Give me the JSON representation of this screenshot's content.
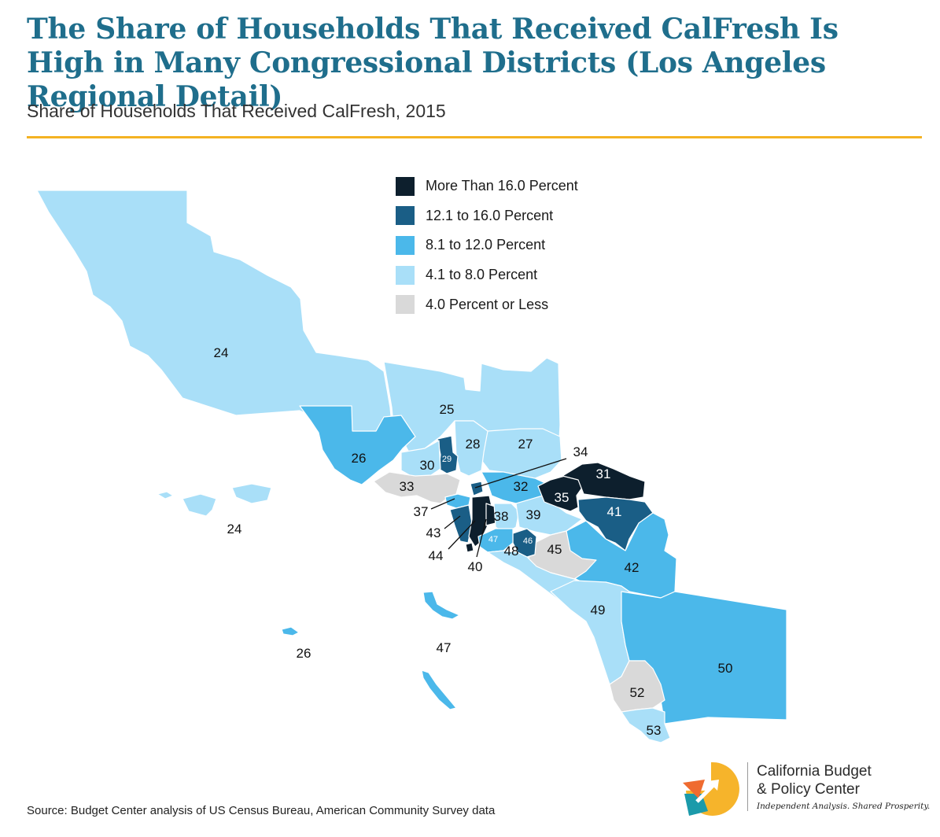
{
  "title": "The Share of Households That Received CalFresh Is High in Many Congressional Districts (Los Angeles Regional Detail)",
  "subtitle": "Share of Households That Received CalFresh, 2015",
  "legend": [
    {
      "label": "More Than 16.0 Percent",
      "color": "#0d1f2d"
    },
    {
      "label": "12.1 to 16.0 Percent",
      "color": "#1a5e86"
    },
    {
      "label": "8.1 to 12.0 Percent",
      "color": "#4bb8ea"
    },
    {
      "label": "4.1 to 8.0 Percent",
      "color": "#a9dff8"
    },
    {
      "label": "4.0 Percent or Less",
      "color": "#d9d9d9"
    }
  ],
  "districts": {
    "d24": "24",
    "d25": "25",
    "d26": "26",
    "d27": "27",
    "d28": "28",
    "d29": "29",
    "d30": "30",
    "d31": "31",
    "d32": "32",
    "d33": "33",
    "d34": "34",
    "d35": "35",
    "d37": "37",
    "d38": "38",
    "d39": "39",
    "d40": "40",
    "d41": "41",
    "d42": "42",
    "d43": "43",
    "d44": "44",
    "d45": "45",
    "d46": "46",
    "d47": "47",
    "d48": "48",
    "d49": "49",
    "d50": "50",
    "d52": "52",
    "d53": "53"
  },
  "source": "Source: Budget Center analysis of US Census Bureau, American Community Survey data",
  "logo": {
    "line1": "California Budget",
    "line2": "& Policy Center",
    "tagline": "Independent Analysis. Shared Prosperity."
  }
}
